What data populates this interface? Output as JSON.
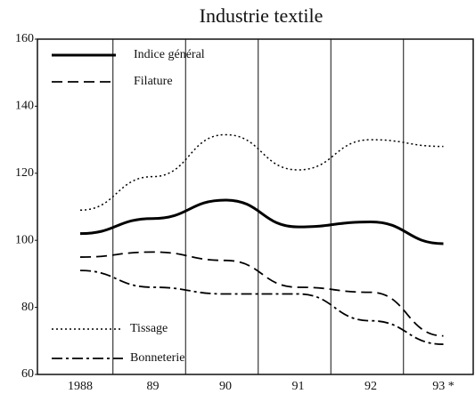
{
  "chart_data": {
    "type": "line",
    "title": "Industrie textile",
    "categories": [
      "1988",
      "89",
      "90",
      "91",
      "92",
      "93 *"
    ],
    "series": [
      {
        "name": "Indice général",
        "color": "#000000",
        "dash": "solid",
        "values": [
          102,
          106.5,
          112,
          104,
          105.5,
          99
        ]
      },
      {
        "name": "Filature",
        "color": "#000000",
        "dash": "dashed",
        "values": [
          95,
          96.5,
          94,
          86,
          84.5,
          71.5
        ]
      },
      {
        "name": "Tissage",
        "color": "#000000",
        "dash": "dotted",
        "values": [
          109,
          119,
          131.5,
          121,
          130,
          128
        ]
      },
      {
        "name": "Bonneterie",
        "color": "#000000",
        "dash": "dashdot",
        "values": [
          91,
          86,
          84,
          84,
          76,
          69
        ]
      }
    ],
    "ylim": [
      60,
      160
    ],
    "yticks": [
      60,
      80,
      100,
      120,
      140,
      160
    ],
    "grid": "vertical"
  }
}
